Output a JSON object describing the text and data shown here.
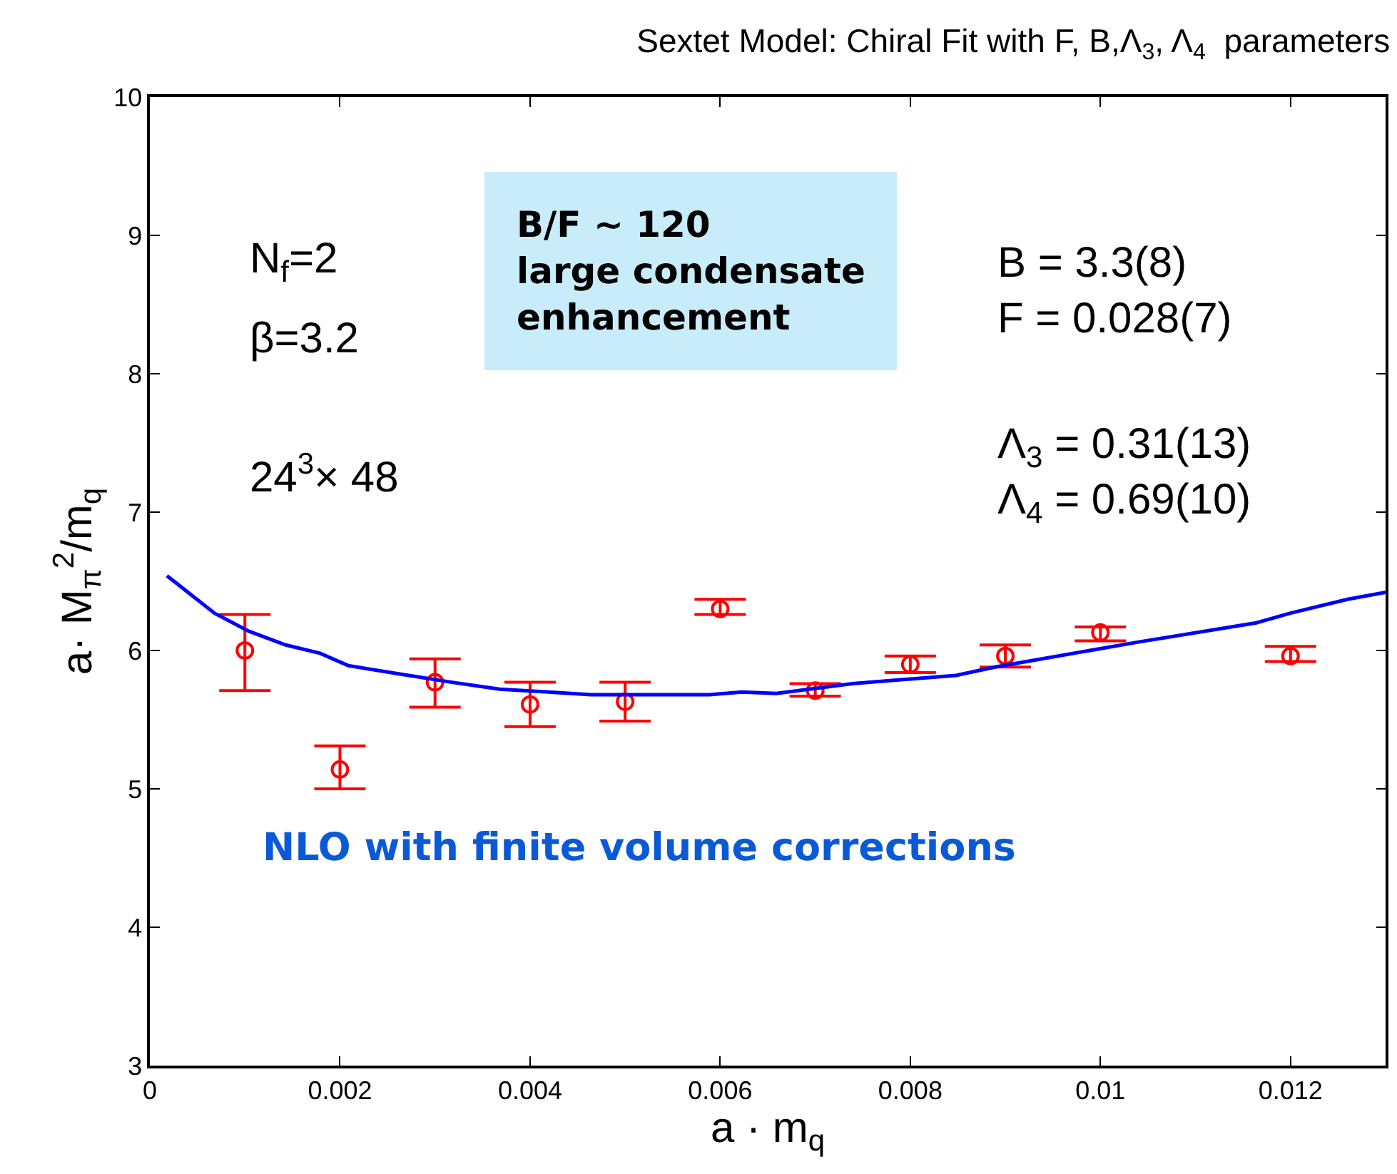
{
  "chart_data": {
    "type": "scatter",
    "title": "Sextet Model: Chiral Fit with F, B,Λ$_{3}$, Λ$_{4}$  parameters",
    "xlabel": "a · m$_{q}$",
    "ylabel": "a· M$_{π}$$^{2}$/m$_{q}$",
    "xlim": [
      0,
      0.013
    ],
    "xticks": [
      0,
      0.002,
      0.004,
      0.006,
      0.008,
      0.01,
      0.012
    ],
    "ylim": [
      3,
      10
    ],
    "yticks": [
      3,
      4,
      5,
      6,
      7,
      8,
      9,
      10
    ],
    "x": [
      0.001,
      0.002,
      0.003,
      0.004,
      0.005,
      0.006,
      0.007,
      0.008,
      0.009,
      0.01,
      0.012
    ],
    "series": [
      {
        "marker": "circle",
        "color": "#ff0000",
        "values": [
          6.0,
          5.14,
          5.77,
          5.61,
          5.63,
          6.3,
          5.71,
          5.9,
          5.96,
          6.13,
          5.96
        ],
        "errors": [
          [
            5.71,
            6.26
          ],
          [
            5.0,
            5.31
          ],
          [
            5.59,
            5.94
          ],
          [
            5.45,
            5.77
          ],
          [
            5.49,
            5.77
          ],
          [
            6.26,
            6.37
          ],
          [
            5.67,
            5.76
          ],
          [
            5.84,
            5.96
          ],
          [
            5.88,
            6.04
          ],
          [
            6.07,
            6.17
          ],
          [
            5.92,
            6.03
          ]
        ]
      },
      {
        "type": "line",
        "color": "#0000ff",
        "line_style": "solid",
        "x": [
          0.00018,
          0.00068,
          0.00104,
          0.00143,
          0.00179,
          0.00209,
          0.00263,
          0.00318,
          0.00368,
          0.00419,
          0.00464,
          0.00589,
          0.00623,
          0.00659,
          0.00739,
          0.00848,
          0.00889,
          0.01039,
          0.01164,
          0.012,
          0.0126,
          0.013
        ],
        "values": [
          6.54,
          6.27,
          6.14,
          6.04,
          5.98,
          5.89,
          5.83,
          5.77,
          5.72,
          5.7,
          5.68,
          5.68,
          5.7,
          5.69,
          5.76,
          5.82,
          5.88,
          6.06,
          6.2,
          6.27,
          6.37,
          6.42
        ]
      }
    ],
    "annotations": [
      "N$_{f}$=2",
      "β=3.2",
      "24$^{3}$× 48",
      "B/F ~ 120\nlarge condensate\nenhancement",
      "B = 3.3(8)\nF = 0.028(7)",
      "Λ$_{3}$ = 0.31(13)\nΛ$_{4}$ = 0.69(10)",
      "NLO with finite volume corrections"
    ]
  }
}
